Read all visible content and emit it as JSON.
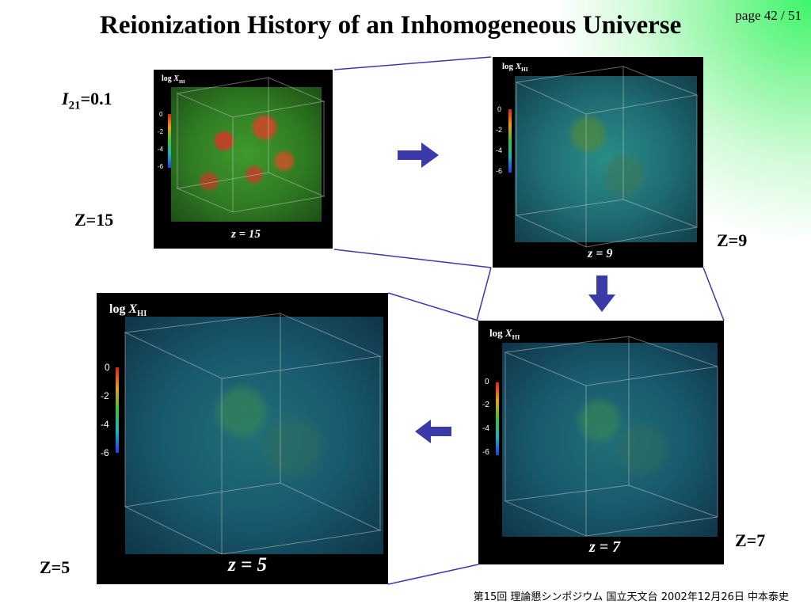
{
  "slide": {
    "title": "Reionization History of an Inhomogeneous Universe",
    "page_label": "page 42 / 51",
    "footer": "第15回 理論懇シンポジウム 国立天文台 2002年12月26日 中本泰史"
  },
  "intensity_label": {
    "symbol": "I",
    "subscript": "21",
    "value": "=0.1"
  },
  "panels": [
    {
      "id": "z15",
      "caption": "Z=15",
      "inner_label": "z = 15",
      "legend_prefix": "log ",
      "legend_var": "X",
      "legend_sub": "HI",
      "ticks": [
        "0",
        "-2",
        "-4",
        "-6"
      ]
    },
    {
      "id": "z9",
      "caption": "Z=9",
      "inner_label": "z = 9",
      "legend_prefix": "log ",
      "legend_var": "X",
      "legend_sub": "HI",
      "ticks": [
        "0",
        "-2",
        "-4",
        "-6"
      ]
    },
    {
      "id": "z7",
      "caption": "Z=7",
      "inner_label": "z = 7",
      "legend_prefix": "log ",
      "legend_var": "X",
      "legend_sub": "HI",
      "ticks": [
        "0",
        "-2",
        "-4",
        "-6"
      ]
    },
    {
      "id": "z5",
      "caption": "Z=5",
      "inner_label": "z = 5",
      "legend_prefix": "log ",
      "legend_var": "X",
      "legend_sub": "HI",
      "ticks": [
        "0",
        "-2",
        "-4",
        "-6"
      ]
    }
  ],
  "colors": {
    "arrow": "#3a3aa8",
    "connector": "#3a3aa8",
    "glow": "#3cf56a"
  },
  "icons": {
    "flow_right": "arrow-right-icon",
    "flow_down": "arrow-down-icon",
    "flow_left": "arrow-left-icon"
  }
}
